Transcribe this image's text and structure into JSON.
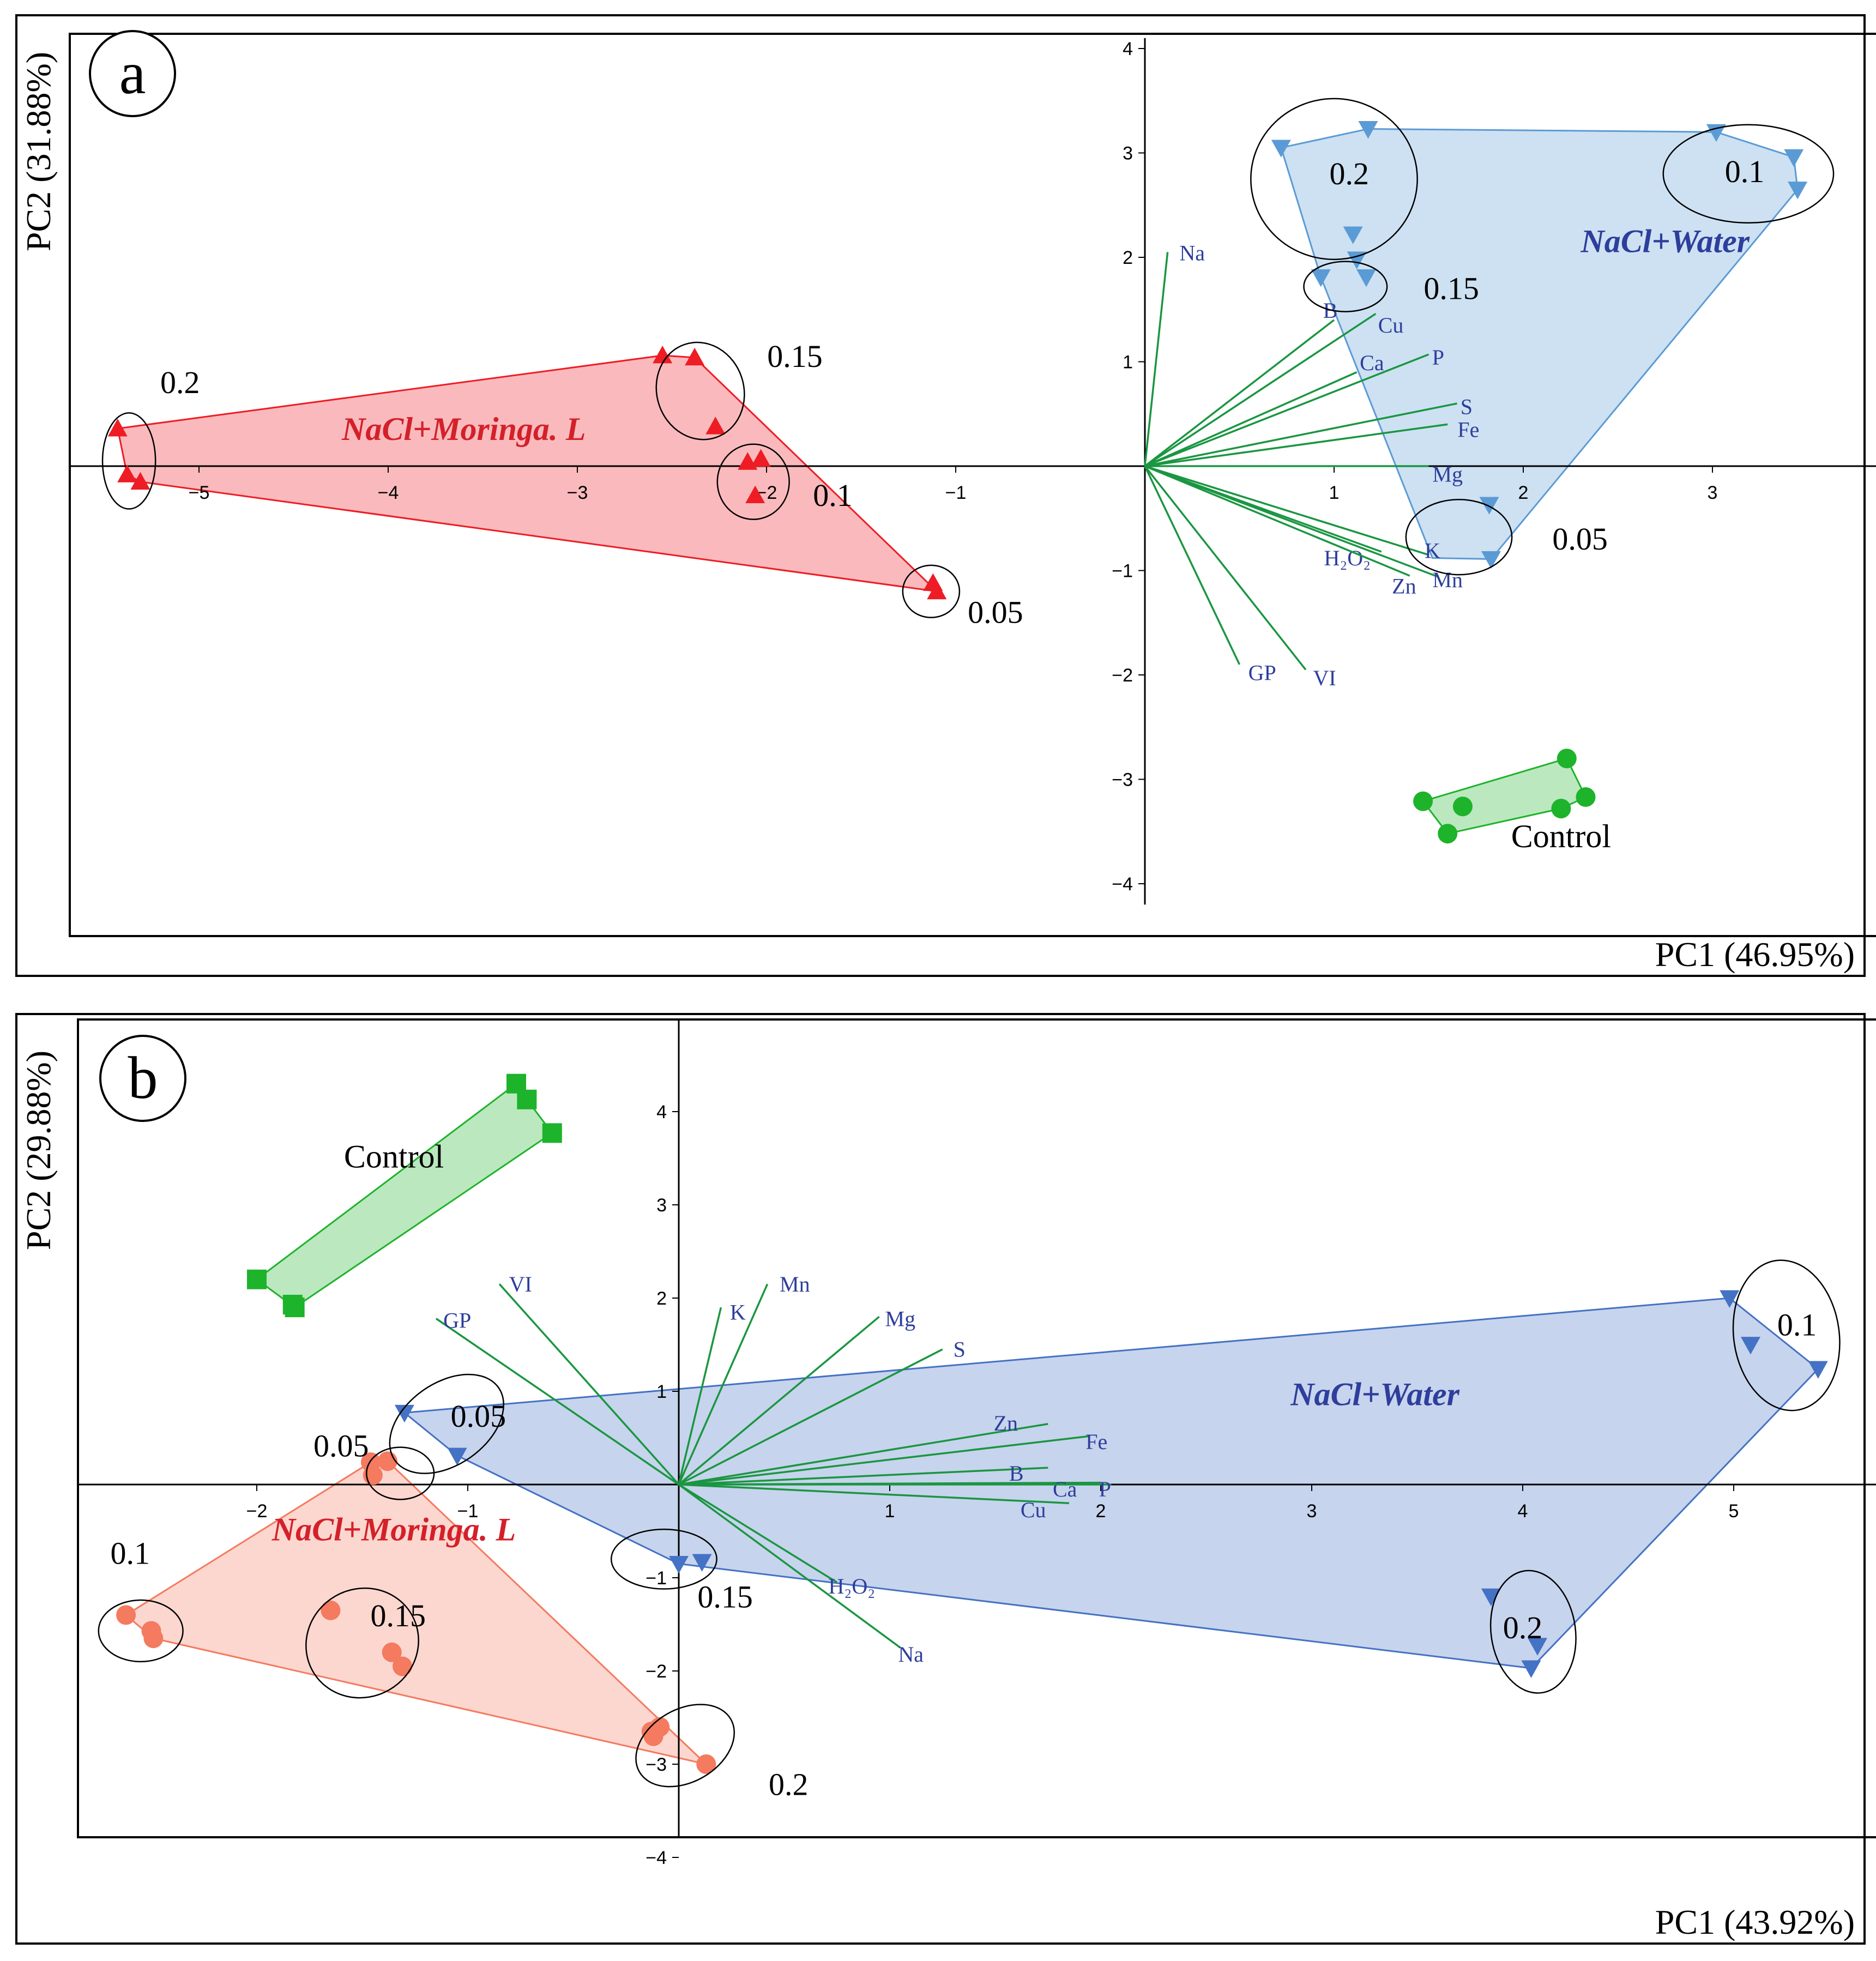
{
  "chart_data": [
    {
      "type": "scatter",
      "panel_label": "a",
      "xlabel": "PC1 (46.95%)",
      "ylabel": "PC2 (31.88%)",
      "xlim": [
        -5.6,
        3.9
      ],
      "ylim": [
        -4.2,
        4.1
      ],
      "x_ticks": [
        -5,
        -4,
        -3,
        -2,
        -1,
        1,
        2,
        3
      ],
      "y_ticks": [
        -4,
        -3,
        -2,
        -1,
        1,
        2,
        3,
        4
      ],
      "x_tick_labels": [
        "−5",
        "−4",
        "−3",
        "−2",
        "−1",
        "1",
        "2",
        "3"
      ],
      "y_tick_labels": [
        "−4",
        "−3",
        "−2",
        "−1",
        "1",
        "2",
        "3",
        "4"
      ],
      "grid": false,
      "colors": {
        "moringa": "#ee1c24",
        "water": "#5b9bd5",
        "control": "#1db32a",
        "loading": "#1a9641",
        "loading_label": "#2e3e9c"
      },
      "groups": [
        {
          "label": "NaCl+Moringa. L",
          "label_at": [
            -3.6,
            0.25
          ],
          "label_color": "#d4202a",
          "marker": "triangle",
          "color": "moringa",
          "points": [
            [
              -5.43,
              0.36
            ],
            [
              -5.38,
              -0.08
            ],
            [
              -5.31,
              -0.15
            ],
            [
              -2.55,
              1.06
            ],
            [
              -2.38,
              1.04
            ],
            [
              -2.27,
              0.38
            ],
            [
              -2.1,
              0.04
            ],
            [
              -2.03,
              0.07
            ],
            [
              -2.06,
              -0.28
            ],
            [
              -1.12,
              -1.12
            ],
            [
              -1.1,
              -1.2
            ]
          ],
          "hull": [
            [
              -5.43,
              0.36
            ],
            [
              -2.55,
              1.06
            ],
            [
              -2.38,
              1.04
            ],
            [
              -1.1,
              -1.2
            ],
            [
              -5.31,
              -0.15
            ],
            [
              -5.38,
              -0.08
            ]
          ]
        },
        {
          "label": "NaCl+Water",
          "label_at": [
            2.75,
            2.05
          ],
          "label_color": "#2e3e9c",
          "marker": "triangle-down",
          "color": "water",
          "points": [
            [
              0.72,
              3.05
            ],
            [
              1.18,
              3.23
            ],
            [
              3.02,
              3.2
            ],
            [
              3.43,
              2.96
            ],
            [
              3.45,
              2.65
            ],
            [
              0.93,
              1.81
            ],
            [
              1.1,
              2.22
            ],
            [
              1.12,
              1.98
            ],
            [
              1.17,
              1.81
            ],
            [
              1.82,
              -0.37
            ],
            [
              1.83,
              -0.89
            ]
          ],
          "hull": [
            [
              0.72,
              3.05
            ],
            [
              1.18,
              3.23
            ],
            [
              3.02,
              3.2
            ],
            [
              3.43,
              2.96
            ],
            [
              3.45,
              2.65
            ],
            [
              1.83,
              -0.89
            ],
            [
              1.52,
              -0.88
            ],
            [
              0.93,
              1.81
            ]
          ]
        },
        {
          "label": "Control",
          "label_at": [
            2.2,
            -3.65
          ],
          "label_color": "#000000",
          "marker": "circle",
          "color": "control",
          "points": [
            [
              2.23,
              -2.8
            ],
            [
              2.33,
              -3.17
            ],
            [
              1.47,
              -3.21
            ],
            [
              1.68,
              -3.26
            ],
            [
              2.2,
              -3.28
            ],
            [
              1.6,
              -3.52
            ]
          ],
          "hull": [
            [
              1.47,
              -3.21
            ],
            [
              2.23,
              -2.8
            ],
            [
              2.33,
              -3.17
            ],
            [
              2.2,
              -3.28
            ],
            [
              1.6,
              -3.52
            ]
          ]
        }
      ],
      "ellipses": [
        {
          "label": "0.2",
          "cx": -5.37,
          "cy": 0.05,
          "rx": 0.14,
          "ry": 0.46,
          "rot": 0,
          "label_at": [
            -5.1,
            0.7
          ]
        },
        {
          "label": "0.15",
          "cx": -2.35,
          "cy": 0.72,
          "rx": 0.23,
          "ry": 0.47,
          "rot": -18,
          "label_at": [
            -1.85,
            0.95
          ]
        },
        {
          "label": "0.1",
          "cx": -2.07,
          "cy": -0.15,
          "rx": 0.19,
          "ry": 0.36,
          "rot": 0,
          "label_at": [
            -1.65,
            -0.38
          ]
        },
        {
          "label": "0.05",
          "cx": -1.13,
          "cy": -1.2,
          "rx": 0.15,
          "ry": 0.25,
          "rot": 0,
          "label_at": [
            -0.79,
            -1.5
          ]
        },
        {
          "label": "0.2",
          "cx": 1.0,
          "cy": 2.75,
          "rx": 0.44,
          "ry": 0.77,
          "rot": 0,
          "label_at": [
            1.08,
            2.7
          ]
        },
        {
          "label": "0.1",
          "cx": 3.19,
          "cy": 2.8,
          "rx": 0.45,
          "ry": 0.47,
          "rot": 0,
          "label_at": [
            3.17,
            2.72
          ]
        },
        {
          "label": "0.15",
          "cx": 1.06,
          "cy": 1.72,
          "rx": 0.22,
          "ry": 0.24,
          "rot": 0,
          "label_at": [
            1.62,
            1.6
          ]
        },
        {
          "label": "0.05",
          "cx": 1.66,
          "cy": -0.68,
          "rx": 0.28,
          "ry": 0.36,
          "rot": 0,
          "label_at": [
            2.3,
            -0.8
          ]
        }
      ],
      "loadings": [
        {
          "name": "Na",
          "x": 0.12,
          "y": 2.05,
          "label_at": [
            0.25,
            1.97
          ]
        },
        {
          "name": "B",
          "x": 1.0,
          "y": 1.4,
          "label_at": [
            0.98,
            1.42
          ]
        },
        {
          "name": "Cu",
          "x": 1.22,
          "y": 1.46,
          "label_at": [
            1.3,
            1.28
          ]
        },
        {
          "name": "Ca",
          "x": 1.12,
          "y": 0.9,
          "label_at": [
            1.2,
            0.92
          ]
        },
        {
          "name": "P",
          "x": 1.5,
          "y": 1.07,
          "label_at": [
            1.55,
            0.97
          ]
        },
        {
          "name": "S",
          "x": 1.65,
          "y": 0.6,
          "label_at": [
            1.7,
            0.5
          ]
        },
        {
          "name": "Fe",
          "x": 1.6,
          "y": 0.4,
          "label_at": [
            1.71,
            0.28
          ]
        },
        {
          "name": "Mg",
          "x": 1.5,
          "y": 0.0,
          "label_at": [
            1.6,
            -0.15
          ]
        },
        {
          "name": "K",
          "x": 1.5,
          "y": -0.85,
          "label_at": [
            1.52,
            -0.88
          ]
        },
        {
          "name": "H₂O₂",
          "x": 1.25,
          "y": -0.82,
          "label_at": [
            1.07,
            -0.95
          ]
        },
        {
          "name": "Mn",
          "x": 1.55,
          "y": -1.06,
          "label_at": [
            1.6,
            -1.16
          ]
        },
        {
          "name": "Zn",
          "x": 1.4,
          "y": -1.05,
          "label_at": [
            1.37,
            -1.22
          ]
        },
        {
          "name": "GP",
          "x": 0.5,
          "y": -1.9,
          "label_at": [
            0.62,
            -2.05
          ]
        },
        {
          "name": "VI",
          "x": 0.85,
          "y": -1.95,
          "label_at": [
            0.95,
            -2.1
          ]
        }
      ]
    },
    {
      "type": "scatter",
      "panel_label": "b",
      "xlabel": "PC1 (43.92%)",
      "ylabel": "PC2 (29.88%)",
      "xlim": [
        -2.85,
        5.55
      ],
      "ylim": [
        -4.3,
        5.0
      ],
      "x_ticks": [
        -2,
        -1,
        1,
        2,
        3,
        4,
        5
      ],
      "y_ticks": [
        -4,
        -3,
        -2,
        -1,
        1,
        2,
        3,
        4
      ],
      "x_tick_labels": [
        "−2",
        "−1",
        "1",
        "2",
        "3",
        "4",
        "5"
      ],
      "y_tick_labels": [
        "−4",
        "−3",
        "−2",
        "−1",
        "1",
        "2",
        "3",
        "4"
      ],
      "grid": false,
      "colors": {
        "moringa": "#f47a60",
        "water": "#4472c4",
        "control": "#1db32a",
        "loading": "#1a9641",
        "loading_label": "#2e3e9c"
      },
      "groups": [
        {
          "label": "NaCl+Moringa. L",
          "label_at": [
            -1.35,
            -0.6
          ],
          "label_color": "#d4202a",
          "marker": "circle",
          "color": "moringa",
          "points": [
            [
              -2.62,
              -1.4
            ],
            [
              -2.5,
              -1.57
            ],
            [
              -2.49,
              -1.65
            ],
            [
              -1.65,
              -1.35
            ],
            [
              -1.36,
              -1.8
            ],
            [
              -1.31,
              -1.95
            ],
            [
              -1.38,
              0.25
            ],
            [
              -1.46,
              0.24
            ],
            [
              -1.45,
              0.1
            ],
            [
              -0.09,
              -2.6
            ],
            [
              -0.13,
              -2.65
            ],
            [
              -0.12,
              -2.7
            ],
            [
              0.13,
              -3.0
            ]
          ],
          "hull": [
            [
              -2.62,
              -1.4
            ],
            [
              -1.46,
              0.24
            ],
            [
              -1.38,
              0.25
            ],
            [
              0.13,
              -3.0
            ],
            [
              -2.49,
              -1.65
            ]
          ]
        },
        {
          "label": "NaCl+Water",
          "label_at": [
            3.3,
            0.85
          ],
          "label_color": "#2e3e9c",
          "marker": "triangle-down",
          "color": "water",
          "points": [
            [
              -1.3,
              0.77
            ],
            [
              -1.05,
              0.31
            ],
            [
              0.0,
              -0.85
            ],
            [
              0.11,
              -0.83
            ],
            [
              4.98,
              2.0
            ],
            [
              5.08,
              1.5
            ],
            [
              5.4,
              1.24
            ],
            [
              3.85,
              -1.2
            ],
            [
              4.07,
              -1.73
            ],
            [
              4.04,
              -1.97
            ]
          ],
          "hull": [
            [
              -1.3,
              0.77
            ],
            [
              4.98,
              2.0
            ],
            [
              5.4,
              1.24
            ],
            [
              4.04,
              -1.97
            ],
            [
              0.0,
              -0.85
            ],
            [
              -1.05,
              0.31
            ]
          ]
        },
        {
          "label": "Control",
          "label_at": [
            -1.35,
            3.4
          ],
          "label_color": "#000000",
          "marker": "square",
          "color": "control",
          "points": [
            [
              -0.77,
              4.3
            ],
            [
              -0.72,
              4.13
            ],
            [
              -0.6,
              3.77
            ],
            [
              -2.0,
              2.2
            ],
            [
              -1.83,
              1.93
            ],
            [
              -1.82,
              1.9
            ]
          ],
          "hull": [
            [
              -2.0,
              2.2
            ],
            [
              -0.77,
              4.3
            ],
            [
              -0.72,
              4.13
            ],
            [
              -0.6,
              3.77
            ],
            [
              -1.82,
              1.9
            ]
          ]
        }
      ],
      "ellipses": [
        {
          "label": "0.05",
          "cx": -1.1,
          "cy": 0.65,
          "rx": 0.3,
          "ry": 0.44,
          "rot": -35,
          "label_at": [
            -0.95,
            0.62
          ]
        },
        {
          "label": "0.05",
          "cx": -1.32,
          "cy": 0.12,
          "rx": 0.16,
          "ry": 0.28,
          "rot": 0,
          "label_at": [
            -1.6,
            0.3
          ]
        },
        {
          "label": "0.1",
          "cx": -2.55,
          "cy": -1.57,
          "rx": 0.2,
          "ry": 0.33,
          "rot": 0,
          "label_at": [
            -2.6,
            -0.85
          ]
        },
        {
          "label": "0.15",
          "cx": -1.5,
          "cy": -1.7,
          "rx": 0.27,
          "ry": 0.58,
          "rot": -30,
          "label_at": [
            -1.33,
            -1.52
          ]
        },
        {
          "label": "0.2",
          "cx": 0.03,
          "cy": -2.8,
          "rx": 0.25,
          "ry": 0.39,
          "rot": -30,
          "label_at": [
            0.52,
            -3.33
          ]
        },
        {
          "label": "0.15",
          "cx": -0.07,
          "cy": -0.8,
          "rx": 0.25,
          "ry": 0.32,
          "rot": 0,
          "label_at": [
            0.22,
            -1.32
          ]
        },
        {
          "label": "0.1",
          "cx": 5.25,
          "cy": 1.6,
          "rx": 0.25,
          "ry": 0.81,
          "rot": -8,
          "label_at": [
            5.3,
            1.6
          ]
        },
        {
          "label": "0.2",
          "cx": 4.05,
          "cy": -1.58,
          "rx": 0.2,
          "ry": 0.66,
          "rot": -8,
          "label_at": [
            4.0,
            -1.65
          ]
        }
      ],
      "loadings": [
        {
          "name": "VI",
          "x": -0.85,
          "y": 2.15,
          "label_at": [
            -0.75,
            2.07
          ]
        },
        {
          "name": "GP",
          "x": -1.15,
          "y": 1.78,
          "label_at": [
            -1.05,
            1.68
          ]
        },
        {
          "name": "K",
          "x": 0.2,
          "y": 1.9,
          "label_at": [
            0.28,
            1.77
          ]
        },
        {
          "name": "Mn",
          "x": 0.42,
          "y": 2.15,
          "label_at": [
            0.55,
            2.07
          ]
        },
        {
          "name": "Mg",
          "x": 0.95,
          "y": 1.8,
          "label_at": [
            1.05,
            1.7
          ]
        },
        {
          "name": "S",
          "x": 1.25,
          "y": 1.45,
          "label_at": [
            1.33,
            1.37
          ]
        },
        {
          "name": "Zn",
          "x": 1.75,
          "y": 0.65,
          "label_at": [
            1.55,
            0.58
          ]
        },
        {
          "name": "Fe",
          "x": 1.95,
          "y": 0.52,
          "label_at": [
            1.98,
            0.38
          ]
        },
        {
          "name": "B",
          "x": 1.75,
          "y": 0.18,
          "label_at": [
            1.6,
            0.04
          ]
        },
        {
          "name": "Ca",
          "x": 2.0,
          "y": 0.02,
          "label_at": [
            1.83,
            -0.13
          ]
        },
        {
          "name": "P",
          "x": 2.05,
          "y": 0.0,
          "label_at": [
            2.02,
            -0.13
          ]
        },
        {
          "name": "Cu",
          "x": 1.85,
          "y": -0.2,
          "label_at": [
            1.68,
            -0.35
          ]
        },
        {
          "name": "H₂O₂",
          "x": 0.75,
          "y": -1.05,
          "label_at": [
            0.82,
            -1.17
          ]
        },
        {
          "name": "Na",
          "x": 1.05,
          "y": -1.75,
          "label_at": [
            1.1,
            -1.9
          ]
        }
      ]
    }
  ]
}
